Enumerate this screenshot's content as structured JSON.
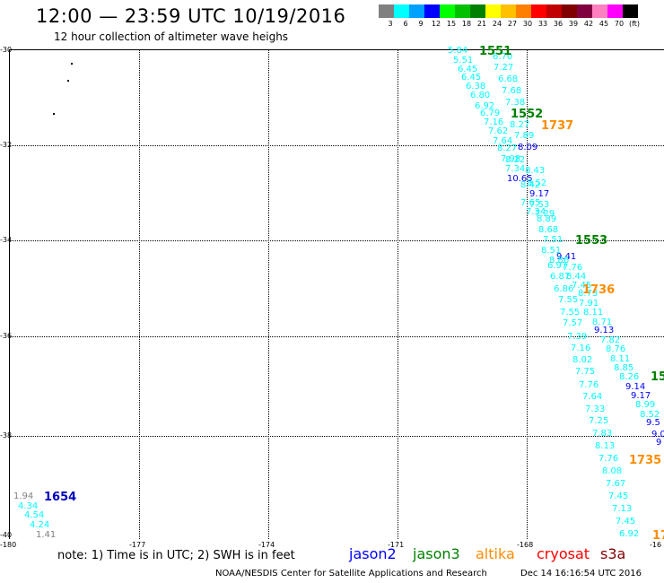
{
  "header": {
    "title": "12:00 — 23:59 UTC 10/19/2016",
    "subtitle": "12 hour collection of altimeter wave heighs"
  },
  "scale": {
    "colors": [
      "#808080",
      "#00ffff",
      "#00a0ff",
      "#0000ff",
      "#00ff00",
      "#00c000",
      "#008000",
      "#ffff00",
      "#ffc000",
      "#ff8000",
      "#ff0000",
      "#c00000",
      "#800000",
      "#800040",
      "#ff80c0",
      "#ff00ff",
      "#000000"
    ],
    "labels": [
      "3",
      "6",
      "9",
      "12",
      "15",
      "18",
      "21",
      "24",
      "27",
      "30",
      "33",
      "36",
      "39",
      "42",
      "45",
      "70",
      "(ft)"
    ]
  },
  "axes": {
    "lat_labels": [
      "-30",
      "-32",
      "-34",
      "-36",
      "-38",
      "-40"
    ],
    "lon_labels": [
      "-180",
      "-177",
      "-174",
      "-171",
      "-168",
      "-16"
    ]
  },
  "observations": [
    {
      "t": "5.84",
      "c": "#00ffff"
    },
    {
      "t": "6.70",
      "c": "#00ffff"
    },
    {
      "t": "5.51",
      "c": "#00ffff"
    },
    {
      "t": "7.27",
      "c": "#00ffff"
    },
    {
      "t": "6.45",
      "c": "#00ffff"
    },
    {
      "t": "6.68",
      "c": "#00ffff"
    },
    {
      "t": "6.45",
      "c": "#00ffff"
    },
    {
      "t": "7.68",
      "c": "#00ffff"
    },
    {
      "t": "6.38",
      "c": "#00ffff"
    },
    {
      "t": "6.80",
      "c": "#00ffff"
    },
    {
      "t": "7.38",
      "c": "#00ffff"
    },
    {
      "t": "6.92",
      "c": "#00ffff"
    },
    {
      "t": "6.79",
      "c": "#00ffff"
    },
    {
      "t": "7.16",
      "c": "#00ffff"
    },
    {
      "t": "8.27",
      "c": "#00ffff"
    },
    {
      "t": "7.62",
      "c": "#00ffff"
    },
    {
      "t": "7.89",
      "c": "#00ffff"
    },
    {
      "t": "7.64",
      "c": "#00ffff"
    },
    {
      "t": "8.09",
      "c": "#0000ff"
    },
    {
      "t": "8.27",
      "c": "#00ffff"
    },
    {
      "t": "7.98",
      "c": "#00ffff"
    },
    {
      "t": "8.22",
      "c": "#00ffff"
    },
    {
      "t": "7.34",
      "c": "#00ffff"
    },
    {
      "t": "8.43",
      "c": "#00ffff"
    },
    {
      "t": "10.65",
      "c": "#0000ff"
    },
    {
      "t": "8.52",
      "c": "#00ffff"
    },
    {
      "t": "8.42",
      "c": "#00ffff"
    },
    {
      "t": "9.17",
      "c": "#0000ff"
    },
    {
      "t": "7.65",
      "c": "#00ffff"
    },
    {
      "t": "7.53",
      "c": "#00ffff"
    },
    {
      "t": "7.34",
      "c": "#00ffff"
    },
    {
      "t": "7.29",
      "c": "#00ffff"
    },
    {
      "t": "8.89",
      "c": "#00ffff"
    },
    {
      "t": "8.68",
      "c": "#00ffff"
    },
    {
      "t": "7.51",
      "c": "#00ffff"
    },
    {
      "t": "8.51",
      "c": "#00ffff"
    },
    {
      "t": "9.41",
      "c": "#0000ff"
    },
    {
      "t": "8.86",
      "c": "#00ffff"
    },
    {
      "t": "6.97",
      "c": "#00ffff"
    },
    {
      "t": "7.76",
      "c": "#00ffff"
    },
    {
      "t": "6.87",
      "c": "#00ffff"
    },
    {
      "t": "8.44",
      "c": "#00ffff"
    },
    {
      "t": "7.45",
      "c": "#00ffff"
    },
    {
      "t": "6.86",
      "c": "#00ffff"
    },
    {
      "t": "8.73",
      "c": "#00ffff"
    },
    {
      "t": "7.55",
      "c": "#00ffff"
    },
    {
      "t": "7.91",
      "c": "#00ffff"
    },
    {
      "t": "7.55",
      "c": "#00ffff"
    },
    {
      "t": "8.11",
      "c": "#00ffff"
    },
    {
      "t": "7.57",
      "c": "#00ffff"
    },
    {
      "t": "8.71",
      "c": "#00ffff"
    },
    {
      "t": "9.13",
      "c": "#0000ff"
    },
    {
      "t": "7.39",
      "c": "#00ffff"
    },
    {
      "t": "7.82",
      "c": "#00ffff"
    },
    {
      "t": "7.16",
      "c": "#00ffff"
    },
    {
      "t": "8.76",
      "c": "#00ffff"
    },
    {
      "t": "8.02",
      "c": "#00ffff"
    },
    {
      "t": "8.11",
      "c": "#00ffff"
    },
    {
      "t": "8.85",
      "c": "#00ffff"
    },
    {
      "t": "7.75",
      "c": "#00ffff"
    },
    {
      "t": "8.26",
      "c": "#00ffff"
    },
    {
      "t": "7.76",
      "c": "#00ffff"
    },
    {
      "t": "9.14",
      "c": "#0000ff"
    },
    {
      "t": "7.64",
      "c": "#00ffff"
    },
    {
      "t": "9.17",
      "c": "#0000ff"
    },
    {
      "t": "8.99",
      "c": "#00ffff"
    },
    {
      "t": "7.33",
      "c": "#00ffff"
    },
    {
      "t": "8.52",
      "c": "#00ffff"
    },
    {
      "t": "7.25",
      "c": "#00ffff"
    },
    {
      "t": "9.5",
      "c": "#0000ff"
    },
    {
      "t": "7.83",
      "c": "#00ffff"
    },
    {
      "t": "9.0",
      "c": "#0000ff"
    },
    {
      "t": "9",
      "c": "#0000ff"
    },
    {
      "t": "8.13",
      "c": "#00ffff"
    },
    {
      "t": "7.76",
      "c": "#00ffff"
    },
    {
      "t": "8.08",
      "c": "#00ffff"
    },
    {
      "t": "7.67",
      "c": "#00ffff"
    },
    {
      "t": "7.45",
      "c": "#00ffff"
    },
    {
      "t": "7.13",
      "c": "#00ffff"
    },
    {
      "t": "7.45",
      "c": "#00ffff"
    },
    {
      "t": "6.92",
      "c": "#00ffff"
    },
    {
      "t": "1.94",
      "c": "#808080"
    },
    {
      "t": "4.34",
      "c": "#00ffff"
    },
    {
      "t": "4.54",
      "c": "#00ffff"
    },
    {
      "t": "4.24",
      "c": "#00ffff"
    },
    {
      "t": "1.41",
      "c": "#808080"
    }
  ],
  "pass_times": [
    {
      "t": "1551",
      "c": "#008000"
    },
    {
      "t": "1552",
      "c": "#008000"
    },
    {
      "t": "1737",
      "c": "#ff8c00"
    },
    {
      "t": "1553",
      "c": "#008000"
    },
    {
      "t": "1736",
      "c": "#ff8c00"
    },
    {
      "t": "15",
      "c": "#008000"
    },
    {
      "t": "1735",
      "c": "#ff8c00"
    },
    {
      "t": "17",
      "c": "#ff8c00"
    },
    {
      "t": "1654",
      "c": "#0000c0"
    }
  ],
  "footer": {
    "note": "note: 1) Time is in UTC; 2) SWH is in feet",
    "satellites": [
      {
        "name": "jason2",
        "color": "#0000ff"
      },
      {
        "name": "jason3",
        "color": "#008000"
      },
      {
        "name": "altika",
        "color": "#ff8c00"
      },
      {
        "name": "cryosat",
        "color": "#ff0000"
      },
      {
        "name": "s3a",
        "color": "#800000"
      }
    ],
    "credit": "NOAA/NESDIS Center for Satellite Applications and Research",
    "generated": "Dec 14 16:16:54 UTC 2016"
  }
}
